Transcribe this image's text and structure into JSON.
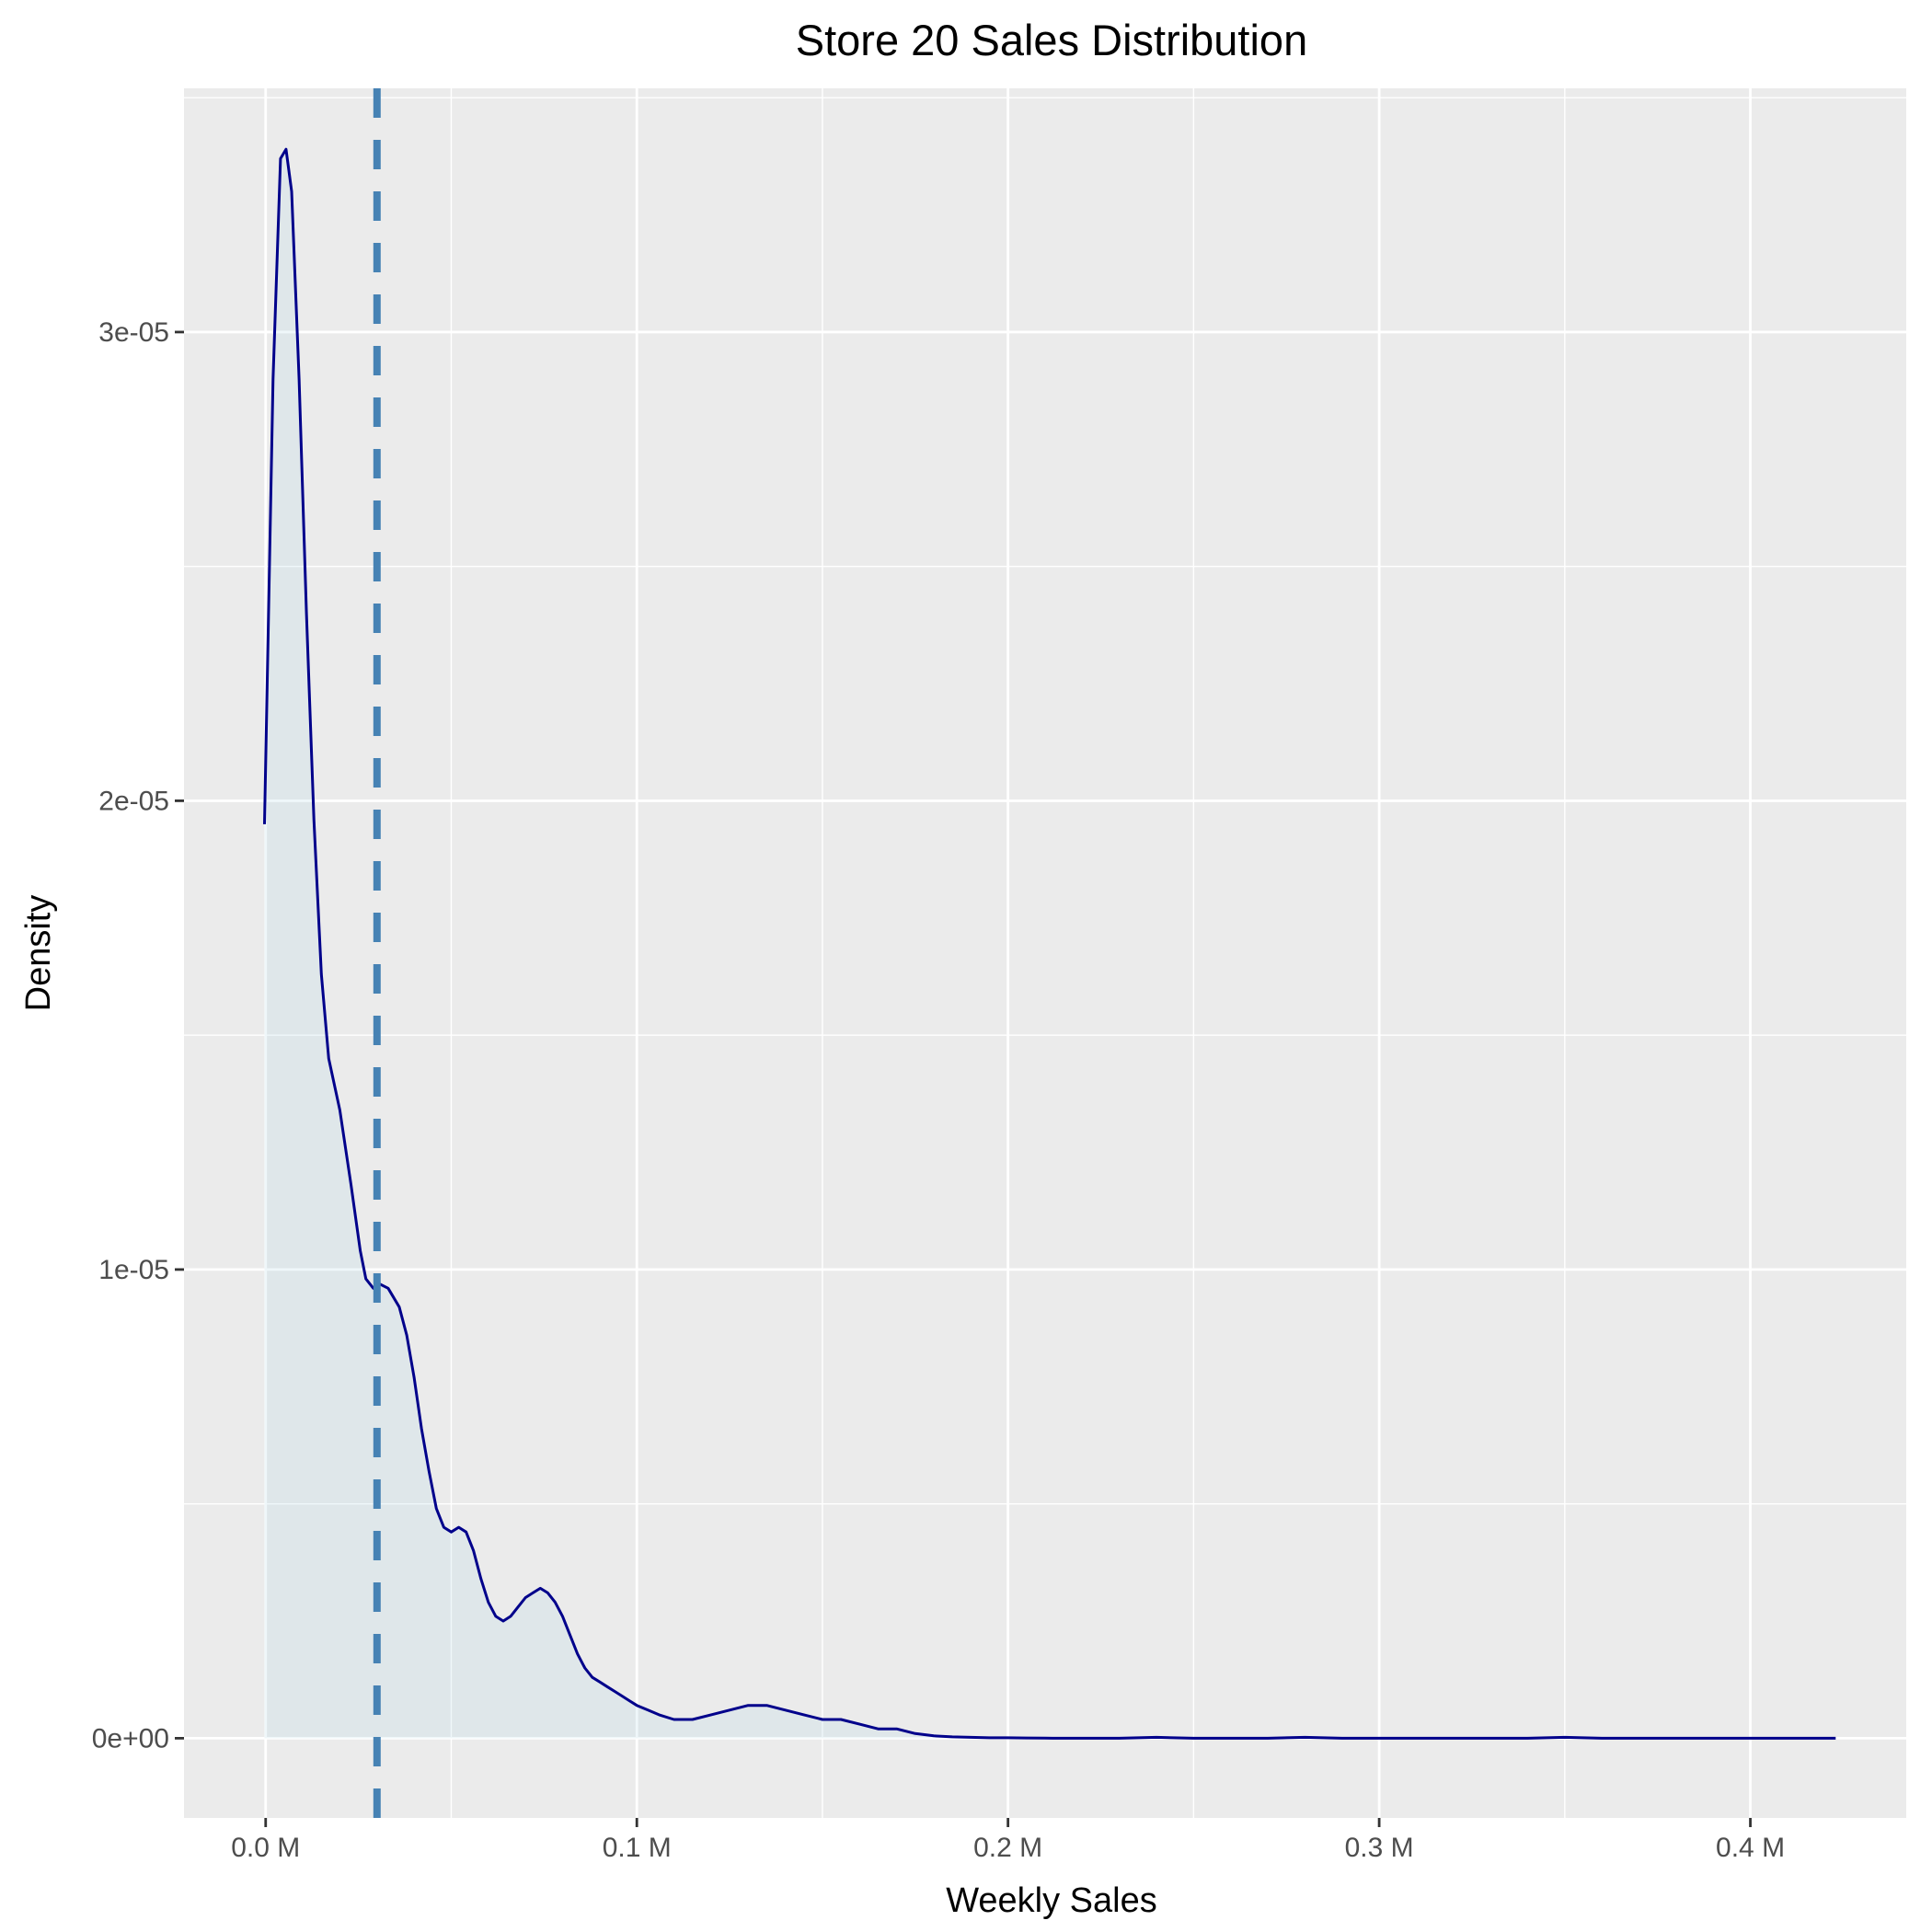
{
  "chart_data": {
    "type": "area",
    "title": "Store 20 Sales Distribution",
    "xlabel": "Weekly Sales",
    "ylabel": "Density",
    "xlim": [
      -22000,
      442000
    ],
    "ylim": [
      -1.7e-06,
      3.52e-05
    ],
    "x_ticks": [
      {
        "value": 0,
        "label": "0.0 M"
      },
      {
        "value": 100000,
        "label": "0.1 M"
      },
      {
        "value": 200000,
        "label": "0.2 M"
      },
      {
        "value": 300000,
        "label": "0.3 M"
      },
      {
        "value": 400000,
        "label": "0.4 M"
      }
    ],
    "x_minor": [
      50000,
      150000,
      250000,
      350000
    ],
    "y_ticks": [
      {
        "value": 0,
        "label": "0e+00"
      },
      {
        "value": 1e-05,
        "label": "1e-05"
      },
      {
        "value": 2e-05,
        "label": "2e-05"
      },
      {
        "value": 3e-05,
        "label": "3e-05"
      }
    ],
    "y_minor": [
      5e-06,
      1.5e-05,
      2.5e-05,
      3.5e-05
    ],
    "grid": true,
    "reference_line": {
      "x": 30000,
      "style": "dashed",
      "color": "#4682B4"
    },
    "series": [
      {
        "x": [
          -300,
          2000,
          4000,
          5500,
          7000,
          9000,
          11000,
          13000,
          15000,
          17000,
          20000,
          23000,
          25500,
          27000,
          29000,
          30500,
          33000,
          36000,
          38000,
          40000,
          42000,
          44000,
          46000,
          48000,
          50000,
          52000,
          54000,
          56000,
          58000,
          60000,
          62000,
          64000,
          66000,
          68000,
          70000,
          72000,
          74000,
          76000,
          78000,
          80000,
          82000,
          84000,
          86000,
          88000,
          90000,
          92000,
          94000,
          96000,
          98000,
          100000,
          103000,
          106000,
          110000,
          115000,
          120000,
          125000,
          130000,
          135000,
          140000,
          145000,
          150000,
          155000,
          160000,
          165000,
          170000,
          175000,
          180000,
          185000,
          190000,
          195000,
          200000,
          205000,
          210000,
          220000,
          230000,
          240000,
          250000,
          260000,
          270000,
          280000,
          290000,
          300000,
          310000,
          320000,
          330000,
          340000,
          350000,
          360000,
          370000,
          380000,
          390000,
          400000,
          410000,
          423000
        ],
        "y": [
          1.95e-05,
          2.9e-05,
          3.37e-05,
          3.39e-05,
          3.3e-05,
          2.9e-05,
          2.4e-05,
          1.96e-05,
          1.63e-05,
          1.45e-05,
          1.34e-05,
          1.18e-05,
          1.04e-05,
          9.8e-06,
          9.6e-06,
          9.7e-06,
          9.6e-06,
          9.2e-06,
          8.6e-06,
          7.7e-06,
          6.6e-06,
          5.7e-06,
          4.9e-06,
          4.5e-06,
          4.4e-06,
          4.5e-06,
          4.4e-06,
          4e-06,
          3.4e-06,
          2.9e-06,
          2.6e-06,
          2.5e-06,
          2.6e-06,
          2.8e-06,
          3e-06,
          3.1e-06,
          3.2e-06,
          3.1e-06,
          2.9e-06,
          2.6e-06,
          2.2e-06,
          1.8e-06,
          1.5e-06,
          1.3e-06,
          1.2e-06,
          1.1e-06,
          1e-06,
          9e-07,
          8e-07,
          7e-07,
          6e-07,
          5e-07,
          4e-07,
          4e-07,
          5e-07,
          6e-07,
          7e-07,
          7e-07,
          6e-07,
          5e-07,
          4e-07,
          4e-07,
          3e-07,
          2e-07,
          2e-07,
          1e-07,
          5e-08,
          3e-08,
          2e-08,
          1e-08,
          1e-08,
          5e-09,
          2e-09,
          0,
          0,
          2e-08,
          0,
          0,
          0,
          2e-08,
          0,
          0,
          0,
          0,
          0,
          0,
          2e-08,
          0,
          0,
          0,
          0,
          0,
          0,
          0
        ]
      }
    ],
    "colors": {
      "panel": "#EBEBEB",
      "grid": "#FFFFFF",
      "line": "#00008B",
      "fill": "#ADD8E6",
      "fill_opacity": 0.2,
      "axis_tick": "#333333"
    }
  }
}
